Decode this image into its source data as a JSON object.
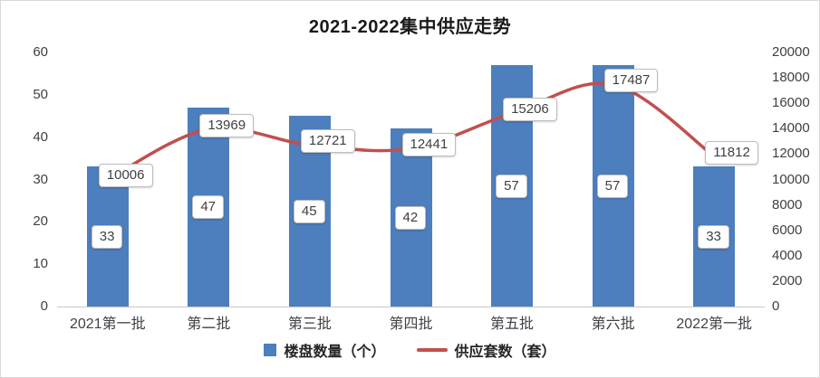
{
  "title": "2021-2022集中供应走势",
  "chart_data": {
    "type": "bar",
    "subtype": "bar-and-line-combo",
    "categories": [
      "2021第一批",
      "第二批",
      "第三批",
      "第四批",
      "第五批",
      "第六批",
      "2022第一批"
    ],
    "series": [
      {
        "name": "楼盘数量（个）",
        "type": "bar",
        "axis": "left",
        "color": "#4d7ebd",
        "values": [
          33,
          47,
          45,
          42,
          57,
          57,
          33
        ]
      },
      {
        "name": "供应套数（套）",
        "type": "line",
        "axis": "right",
        "color": "#c0504d",
        "values": [
          10006,
          13969,
          12721,
          12441,
          15206,
          17487,
          11812
        ]
      }
    ],
    "left_axis": {
      "min": 0,
      "max": 60,
      "step": 10
    },
    "right_axis": {
      "min": 0,
      "max": 20000,
      "step": 2000
    },
    "legend_position": "bottom",
    "grid": false,
    "data_labels": "shown-in-callout-boxes"
  },
  "colors": {
    "bar": "#4d7ebd",
    "line": "#c0504d",
    "axis_text": "#3f3f46",
    "border": "#d9d9d9"
  }
}
